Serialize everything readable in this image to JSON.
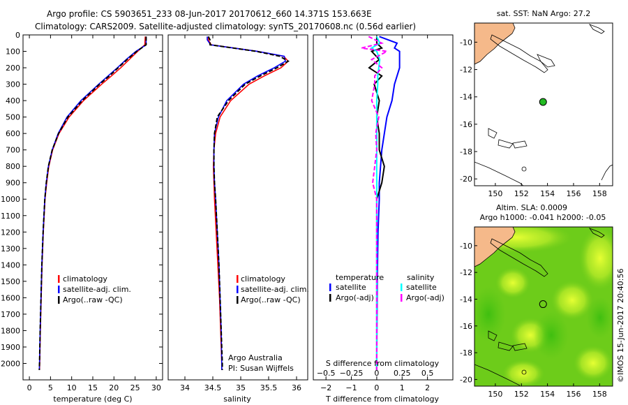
{
  "header": {
    "line1": "Argo profile: CS 5903651_233 08-Jun-2017 20170612_660 14.371S 153.663E",
    "line2": "Climatology: CARS2009. Satellite-adjusted climatology: synTS_20170608.nc (0.56d earlier)"
  },
  "colors": {
    "climatology": "#ff0000",
    "satellite": "#0000ff",
    "argo": "#000000",
    "satellite_diff": "#00ffff",
    "argo_sal_diff": "#ff00ff",
    "land": "#f5b98a",
    "float": "#22bb22"
  },
  "chart_data": [
    {
      "type": "line",
      "name": "temperature",
      "xlabel": "temperature (deg C)",
      "ylabel": "",
      "xlim": [
        -1.5,
        31.5
      ],
      "ylim": [
        2100,
        0
      ],
      "xticks": [
        0,
        5,
        10,
        15,
        20,
        25,
        30
      ],
      "yticks": [
        0,
        100,
        200,
        300,
        400,
        500,
        600,
        700,
        800,
        900,
        1000,
        1100,
        1200,
        1300,
        1400,
        1500,
        1600,
        1700,
        1800,
        1900,
        2000
      ],
      "depth": [
        10,
        60,
        100,
        150,
        200,
        250,
        300,
        400,
        500,
        600,
        700,
        800,
        900,
        1000,
        1200,
        1400,
        1600,
        1800,
        2000,
        2040
      ],
      "series": [
        {
          "name": "climatology",
          "values": [
            27.4,
            27.3,
            25.6,
            23.6,
            21.6,
            19.4,
            17.1,
            12.8,
            9.4,
            7.0,
            5.5,
            4.6,
            4.1,
            3.7,
            3.3,
            3.0,
            2.8,
            2.6,
            2.45,
            2.4
          ]
        },
        {
          "name": "satellite-adj. clim.",
          "values": [
            27.6,
            27.6,
            25.2,
            22.9,
            20.8,
            18.6,
            16.4,
            12.2,
            8.9,
            6.8,
            5.4,
            4.5,
            4.0,
            3.65,
            3.25,
            2.95,
            2.75,
            2.55,
            2.4,
            2.35
          ]
        },
        {
          "name": "Argo(..raw -QC)",
          "values": [
            27.6,
            27.6,
            25.4,
            23.1,
            21.0,
            18.9,
            16.6,
            12.5,
            9.1,
            6.9,
            5.4,
            4.5,
            4.0,
            3.65,
            3.25,
            2.95,
            2.75,
            2.55,
            2.4,
            2.35
          ]
        }
      ],
      "legend": [
        "climatology",
        "satellite-adj. clim.",
        "Argo(..raw -QC)"
      ]
    },
    {
      "type": "line",
      "name": "salinity",
      "xlabel": "salinity",
      "ylabel": "",
      "xlim": [
        33.7,
        36.2
      ],
      "ylim": [
        2100,
        0
      ],
      "xticks": [
        34,
        34.5,
        35,
        35.5,
        36
      ],
      "depth": [
        10,
        30,
        60,
        100,
        130,
        160,
        200,
        250,
        300,
        400,
        500,
        600,
        700,
        800,
        900,
        1000,
        1200,
        1400,
        1600,
        1800,
        2000,
        2040
      ],
      "series": [
        {
          "name": "climatology",
          "values": [
            34.42,
            34.42,
            34.47,
            35.3,
            35.77,
            35.85,
            35.72,
            35.42,
            35.15,
            34.82,
            34.63,
            34.55,
            34.52,
            34.51,
            34.52,
            34.53,
            34.56,
            34.59,
            34.62,
            34.64,
            34.66,
            34.66
          ]
        },
        {
          "name": "satellite-adj. clim.",
          "values": [
            34.4,
            34.4,
            34.46,
            35.3,
            35.78,
            35.8,
            35.6,
            35.3,
            35.05,
            34.75,
            34.6,
            34.53,
            34.52,
            34.52,
            34.53,
            34.55,
            34.58,
            34.61,
            34.63,
            34.65,
            34.66,
            34.66
          ]
        },
        {
          "name": "Argo(..raw -QC)",
          "values": [
            34.42,
            34.45,
            34.45,
            35.28,
            35.7,
            35.85,
            35.65,
            35.35,
            35.08,
            34.78,
            34.58,
            34.53,
            34.52,
            34.52,
            34.53,
            34.55,
            34.58,
            34.61,
            34.63,
            34.65,
            34.67,
            34.67
          ]
        }
      ],
      "legend": [
        "climatology",
        "satellite-adj. clim.",
        "Argo(..raw -QC)"
      ],
      "annotation": [
        "Argo Australia",
        "PI: Susan Wijffels"
      ]
    },
    {
      "type": "line",
      "name": "differences",
      "xlabel": "T difference from climatology",
      "x2label": "S difference from climatology",
      "xlim": [
        -2.5,
        3.0
      ],
      "x2lim": [
        -0.625,
        0.75
      ],
      "ylim": [
        2100,
        0
      ],
      "xticks": [
        -2,
        -1,
        0,
        1,
        2
      ],
      "xticklabels": [
        "−2",
        "−1",
        "0",
        "1",
        "2"
      ],
      "x2ticks": [
        -0.5,
        -0.25,
        0,
        0.25,
        0.5
      ],
      "x2ticklabels": [
        "−0.5",
        "−0.25",
        "0",
        "0.25",
        "0.5"
      ],
      "depth": [
        10,
        50,
        80,
        100,
        150,
        200,
        250,
        300,
        400,
        500,
        600,
        700,
        800,
        900,
        1000,
        1200,
        1500,
        2000,
        2040
      ],
      "series": [
        {
          "name": "temperature satellite",
          "axis": "T",
          "values": [
            0.1,
            0.8,
            0.7,
            0.9,
            0.9,
            0.9,
            0.8,
            0.7,
            0.6,
            0.4,
            0.3,
            0.2,
            0.15,
            0.1,
            0.1,
            0.05,
            0.02,
            0.0,
            0.0
          ]
        },
        {
          "name": "temperature Argo(-adj)",
          "axis": "T",
          "values": [
            0.0,
            0.0,
            0.2,
            -0.2,
            0.1,
            -0.3,
            0.2,
            -0.1,
            0.1,
            0.0,
            0.1,
            0.1,
            0.3,
            0.2,
            0.0,
            0.0,
            0.0,
            0.0,
            0.0
          ]
        },
        {
          "name": "salinity satellite",
          "axis": "S",
          "values": [
            0.0,
            0.03,
            -0.05,
            0.0,
            0.03,
            0.02,
            0.01,
            0.01,
            0.0,
            0.0,
            0.0,
            0.0,
            0.0,
            0.0,
            0.0,
            0.0,
            0.0,
            0.0,
            0.0
          ]
        },
        {
          "name": "salinity Argo(-adj)",
          "axis": "S",
          "values": [
            -0.08,
            0.05,
            -0.15,
            0.1,
            -0.05,
            0.05,
            -0.02,
            -0.02,
            -0.05,
            0.02,
            -0.01,
            0.0,
            -0.02,
            -0.04,
            0.0,
            0.0,
            0.0,
            0.0,
            0.0
          ]
        }
      ],
      "legend_headers": [
        "temperature",
        "salinity"
      ],
      "legend": [
        "satellite",
        "Argo(-adj)",
        "satellite",
        "Argo(-adj)"
      ]
    }
  ],
  "maps": {
    "sst_title": "sat. SST: NaN Argo: 27.2",
    "sla_title1": "Altim. SLA: 0.0009",
    "sla_title2": "Argo h1000: -0.041 h2000: -0.05",
    "lon_ticks": [
      150,
      152,
      154,
      156,
      158
    ],
    "lat_ticks": [
      -10,
      -12,
      -14,
      -16,
      -18,
      -20
    ],
    "lon_lim": [
      148.4,
      159.0
    ],
    "lat_lim": [
      -20.5,
      -8.6
    ],
    "float_lon": 153.66,
    "float_lat": -14.37
  },
  "credit": "©IMOS 15-Jun-2017 20:40:56"
}
